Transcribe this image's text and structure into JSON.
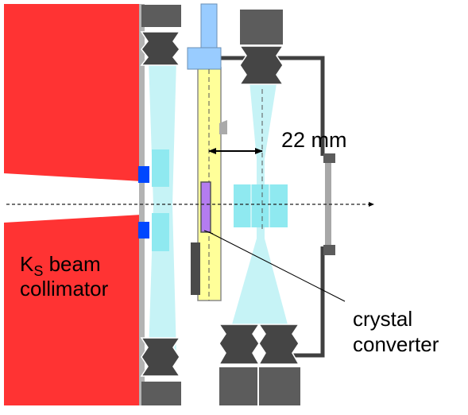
{
  "colors": {
    "collimator": "#ff3333",
    "lead": "#b3b3b3",
    "magnet_dark": "#454545",
    "magnet_mid": "#5c5c5c",
    "beam_envelope": "#c6f3f6",
    "beam_core": "#8fe9f0",
    "holder": "#ffff99",
    "holder_top": "#99ccff",
    "crystal": "#b47cf0",
    "blue_block": "#0047ff",
    "chamber": "#404040",
    "window": "#a8a8a8"
  },
  "labels": {
    "collimator_line1_main": "K",
    "collimator_line1_sub": "S",
    "collimator_line1_rest": " beam",
    "collimator_line2": "collimator",
    "distance": "22 mm",
    "crystal_line1": "crystal",
    "crystal_line2": "converter"
  }
}
